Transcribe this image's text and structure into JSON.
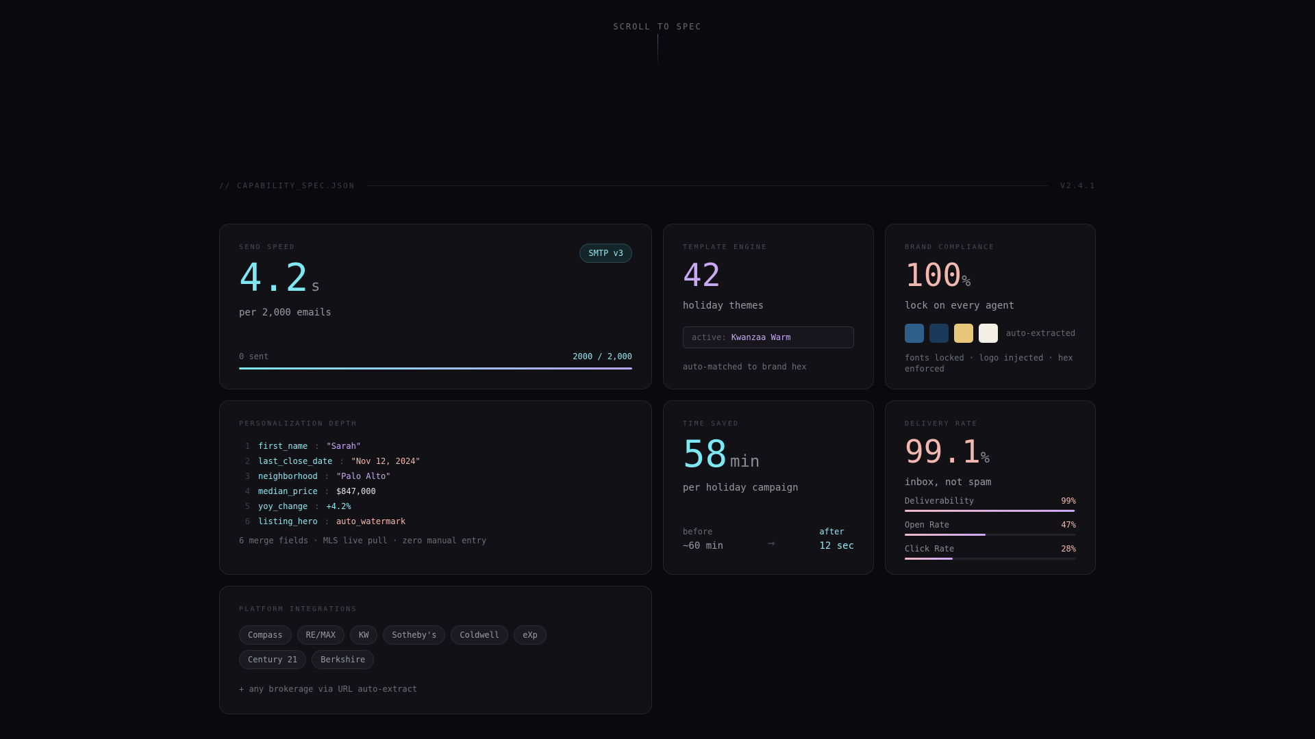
{
  "scroll_hint": "SCROLL TO SPEC",
  "spec_header": {
    "left": "// CAPABILITY_SPEC.JSON",
    "version": "V2.4.1"
  },
  "send_speed": {
    "label": "SEND SPEED",
    "value": "4.2",
    "unit": "s",
    "subtitle": "per 2,000 emails",
    "badge": "SMTP v3",
    "progress_left": "0 sent",
    "progress_right": "2000 / 2,000",
    "progress_fraction": 1.0
  },
  "template_engine": {
    "label": "TEMPLATE ENGINE",
    "value": "42",
    "subtitle": "holiday themes",
    "active_prefix": "active:",
    "active_value": "Kwanzaa Warm",
    "note": "auto-matched to brand hex"
  },
  "brand_compliance": {
    "label": "BRAND COMPLIANCE",
    "value": "100",
    "unit": "%",
    "subtitle": "lock on every agent",
    "swatches": [
      "#2e5f8a",
      "#1b3a5a",
      "#e8c77a",
      "#f4efe4"
    ],
    "swatch_label": "auto-extracted",
    "note": "fonts locked · logo injected · hex enforced"
  },
  "personalization": {
    "label": "PERSONALIZATION DEPTH",
    "lines": [
      {
        "n": "1",
        "key": "first_name",
        "value": "\"Sarah\"",
        "color": "purple"
      },
      {
        "n": "2",
        "key": "last_close_date",
        "value": "\"Nov 12, 2024\"",
        "color": "pink"
      },
      {
        "n": "3",
        "key": "neighborhood",
        "value": "\"Palo Alto\"",
        "color": "purple"
      },
      {
        "n": "4",
        "key": "median_price",
        "value": "$847,000",
        "color": "white"
      },
      {
        "n": "5",
        "key": "yoy_change",
        "value": "+4.2%",
        "color": "cyan"
      },
      {
        "n": "6",
        "key": "listing_hero",
        "value": "auto_watermark",
        "color": "pink"
      }
    ],
    "note": "6 merge fields · MLS live pull · zero manual entry"
  },
  "time_saved": {
    "label": "TIME SAVED",
    "value": "58",
    "unit": "min",
    "subtitle": "per holiday campaign",
    "before_label": "before",
    "before_value": "~60 min",
    "arrow": "→",
    "after_label": "after",
    "after_value": "12 sec"
  },
  "delivery": {
    "label": "DELIVERY RATE",
    "value": "99.1",
    "unit": "%",
    "subtitle": "inbox, not spam",
    "metrics": [
      {
        "name": "Deliverability",
        "value": "99%",
        "fraction": 0.99
      },
      {
        "name": "Open Rate",
        "value": "47%",
        "fraction": 0.47
      },
      {
        "name": "Click Rate",
        "value": "28%",
        "fraction": 0.28
      }
    ]
  },
  "platform": {
    "label": "PLATFORM INTEGRATIONS",
    "chips": [
      "Compass",
      "RE/MAX",
      "KW",
      "Sotheby's",
      "Coldwell",
      "eXp",
      "Century 21",
      "Berkshire"
    ],
    "note": "+ any brokerage via URL auto-extract"
  }
}
